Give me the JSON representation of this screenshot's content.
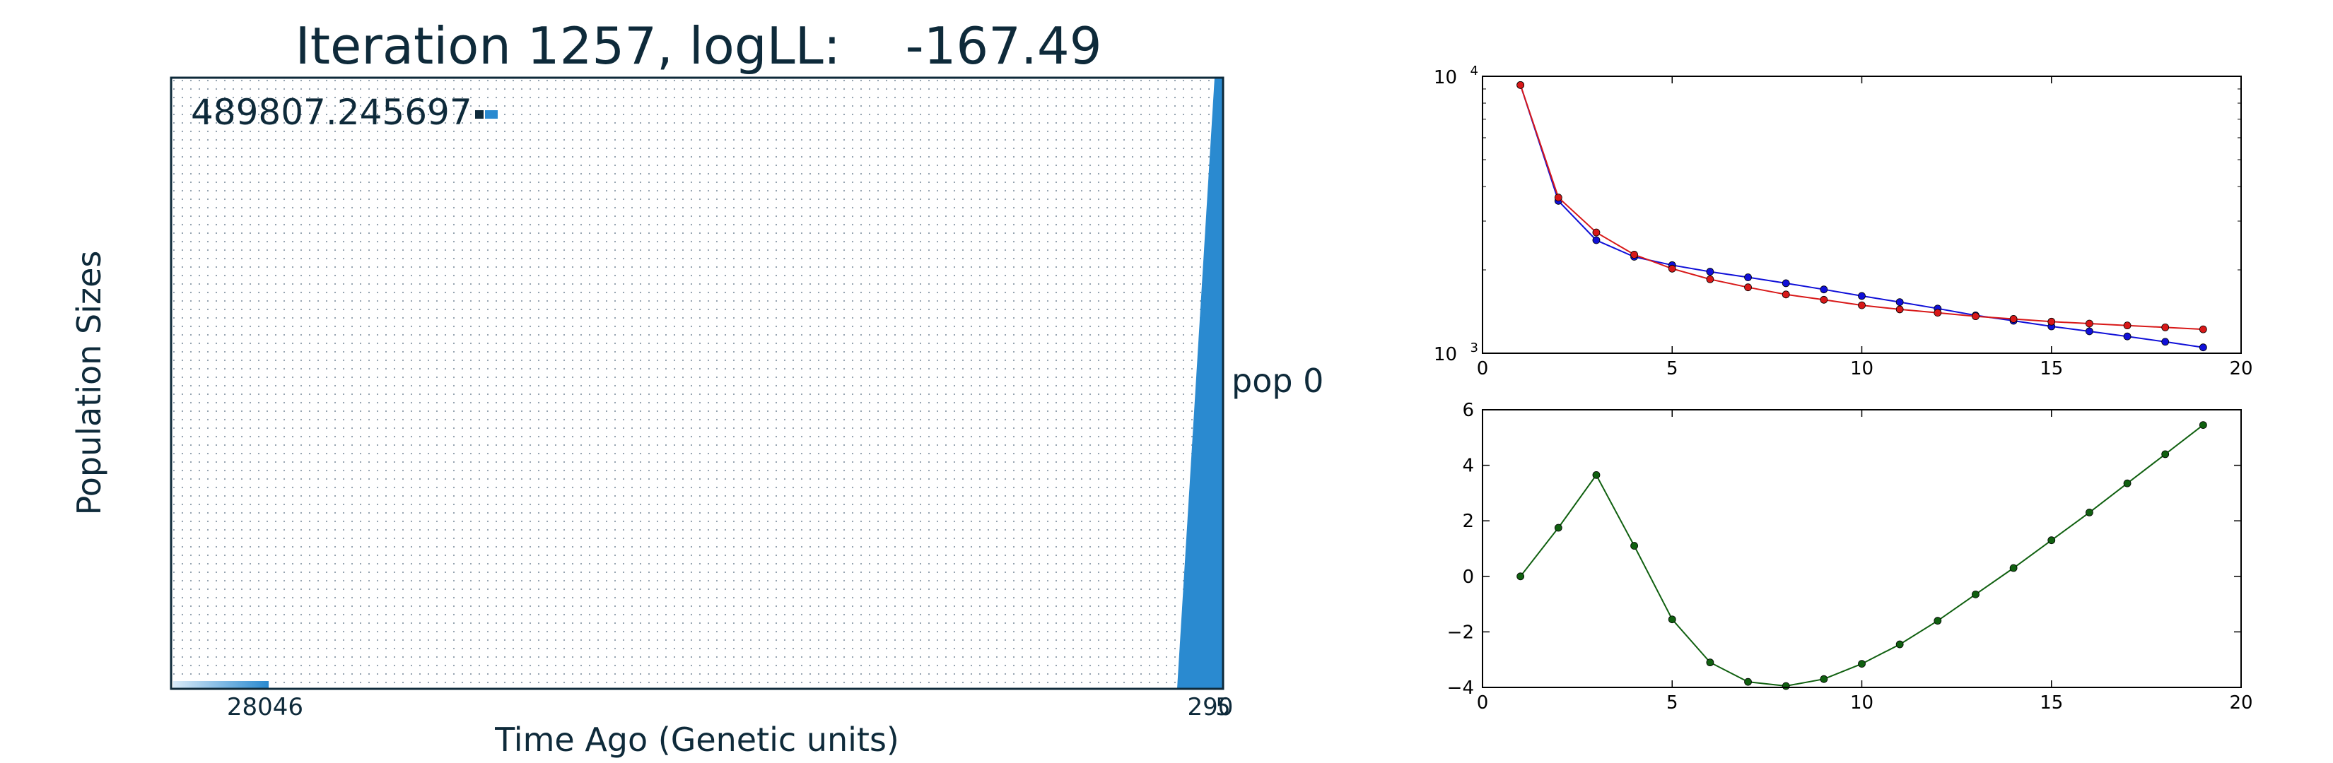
{
  "chart_data": [
    {
      "type": "area",
      "title": "Iteration 1257, logLL:    -167.49",
      "xlabel": "Time Ago (Genetic units)",
      "ylabel": "Population Sizes",
      "scale_label": "489807.245697",
      "x_tick_labels": [
        "28046",
        "290",
        "5"
      ],
      "population_label": "pop 0",
      "grid": true,
      "colors": {
        "fill": "#2a8ad0",
        "frame": "#0e2a3a",
        "grid": "#8a9aa8"
      }
    },
    {
      "type": "line",
      "y_scale": "log",
      "xlim": [
        0,
        20
      ],
      "ylim": [
        1000,
        10000
      ],
      "x_ticks": [
        0,
        5,
        10,
        15,
        20
      ],
      "y_ticks": [
        {
          "base": "10",
          "exp": "3",
          "value": 1000
        },
        {
          "base": "10",
          "exp": "4",
          "value": 10000
        }
      ],
      "series": [
        {
          "color": "#1010d8",
          "x": [
            1,
            2,
            3,
            4,
            5,
            6,
            7,
            8,
            9,
            10,
            11,
            12,
            13,
            14,
            15,
            16,
            17,
            18,
            19
          ],
          "y": [
            9300,
            3550,
            2560,
            2230,
            2080,
            1970,
            1880,
            1790,
            1700,
            1610,
            1530,
            1450,
            1370,
            1310,
            1250,
            1200,
            1150,
            1100,
            1050
          ]
        },
        {
          "color": "#d81818",
          "x": [
            1,
            2,
            3,
            4,
            5,
            6,
            7,
            8,
            9,
            10,
            11,
            12,
            13,
            14,
            15,
            16,
            17,
            18,
            19
          ],
          "y": [
            9300,
            3650,
            2730,
            2270,
            2020,
            1850,
            1730,
            1630,
            1560,
            1490,
            1440,
            1400,
            1360,
            1330,
            1300,
            1280,
            1260,
            1240,
            1220
          ]
        }
      ]
    },
    {
      "type": "line",
      "xlim": [
        0,
        20
      ],
      "ylim": [
        -4,
        6
      ],
      "x_ticks": [
        0,
        5,
        10,
        15,
        20
      ],
      "y_ticks": [
        -4,
        -2,
        0,
        2,
        4,
        6
      ],
      "y_tick_labels": [
        "−4",
        "−2",
        "0",
        "2",
        "4",
        "6"
      ],
      "series": [
        {
          "color": "#106010",
          "x": [
            1,
            2,
            3,
            4,
            5,
            6,
            7,
            8,
            9,
            10,
            11,
            12,
            13,
            14,
            15,
            16,
            17,
            18,
            19
          ],
          "y": [
            0.0,
            1.75,
            3.65,
            1.1,
            -1.55,
            -3.1,
            -3.8,
            -3.95,
            -3.7,
            -3.15,
            -2.45,
            -1.6,
            -0.65,
            0.3,
            1.3,
            2.3,
            3.35,
            4.4,
            5.45
          ]
        }
      ]
    }
  ]
}
